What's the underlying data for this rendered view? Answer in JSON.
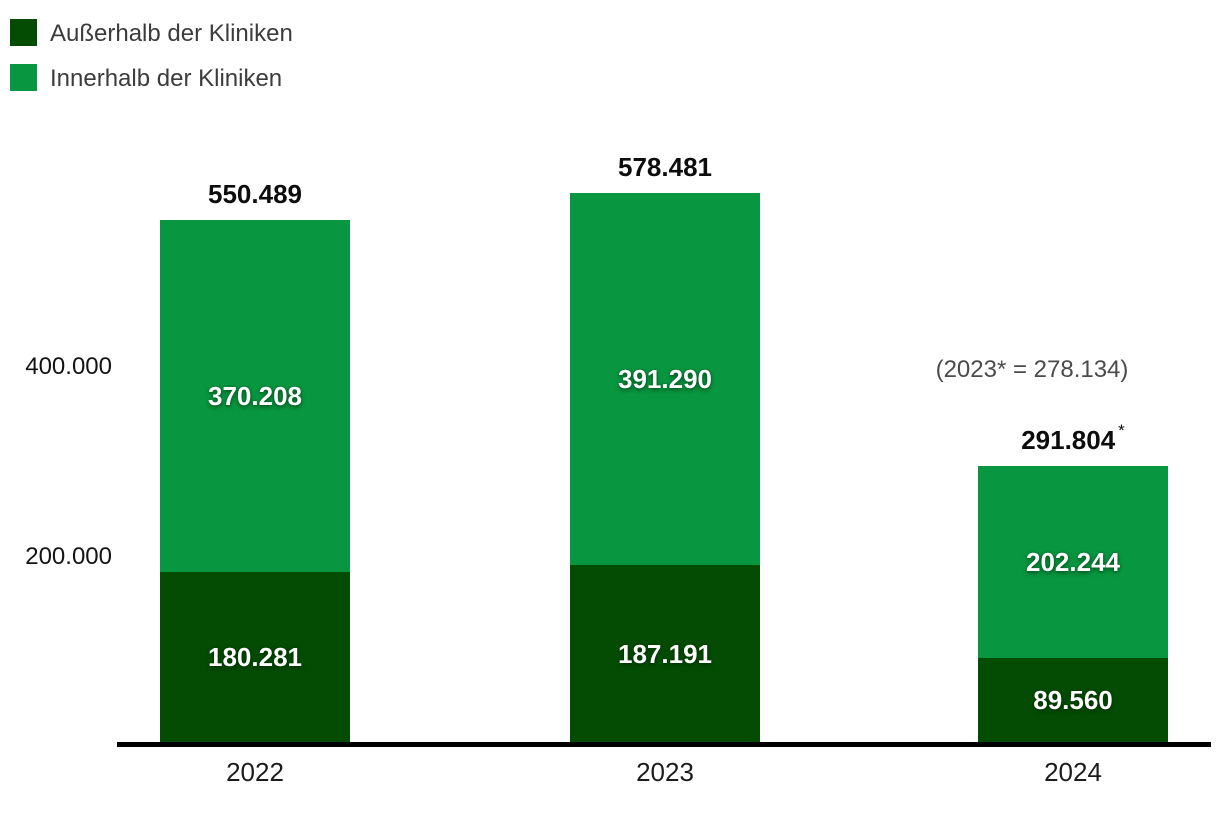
{
  "legend": {
    "items": [
      {
        "label": "Außerhalb der Kliniken",
        "color": "#044c04"
      },
      {
        "label": "Innerhalb der Kliniken",
        "color": "#089740"
      }
    ]
  },
  "annotation": {
    "text": "(2023* = 278.134)"
  },
  "chart_data": {
    "type": "bar",
    "stacked": true,
    "title": "",
    "xlabel": "",
    "ylabel": "",
    "categories": [
      "2022",
      "2023",
      "2024"
    ],
    "series": [
      {
        "name": "Außerhalb der Kliniken",
        "color": "#044c04",
        "values": [
          180281,
          187191,
          89560
        ],
        "labels": [
          "180.281",
          "187.191",
          "89.560"
        ]
      },
      {
        "name": "Innerhalb der Kliniken",
        "color": "#089740",
        "values": [
          370208,
          391290,
          202244
        ],
        "labels": [
          "370.208",
          "391.290",
          "202.244"
        ]
      }
    ],
    "totals": [
      550489,
      578481,
      291804
    ],
    "total_labels": [
      "550.489",
      "578.481",
      "291.804"
    ],
    "note_marker": "*",
    "note_marker_category_index": 2,
    "annotation_text": "(2023* = 278.134)",
    "y_ticks": [
      {
        "value": 200000,
        "label": "200.000"
      },
      {
        "value": 400000,
        "label": "400.000"
      }
    ],
    "ylim": [
      0,
      620000
    ],
    "grid": false,
    "legend_position": "top-left"
  }
}
